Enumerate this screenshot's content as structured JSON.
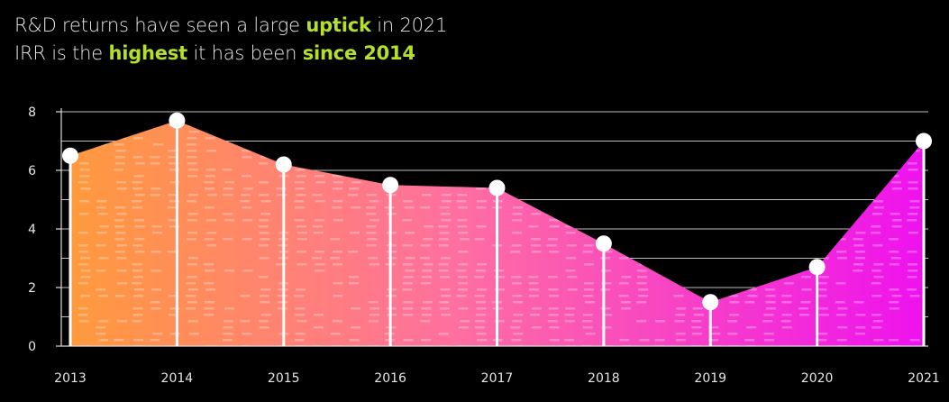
{
  "headline": {
    "line1": {
      "pre": "R&D returns have seen a large ",
      "em": "uptick",
      "post": " in 2021"
    },
    "line2": {
      "pre": "IRR is the ",
      "em1": "highest",
      "mid": " it has been ",
      "em2": "since 2014"
    }
  },
  "colors": {
    "accent": "#b4e02a",
    "gradient_start": "#ff9a3c",
    "gradient_mid": "#ff6fa0",
    "gradient_end": "#ee12ee"
  },
  "chart_data": {
    "type": "area",
    "title": "R&D returns have seen a large uptick in 2021",
    "subtitle": "IRR is the highest it has been since 2014",
    "xlabel": "",
    "ylabel": "",
    "categories": [
      "2013",
      "2014",
      "2015",
      "2016",
      "2017",
      "2018",
      "2019",
      "2020",
      "2021"
    ],
    "values": [
      6.5,
      7.7,
      6.2,
      5.5,
      5.4,
      3.5,
      1.5,
      2.7,
      7.0
    ],
    "ylim": [
      0,
      8
    ],
    "yticks": [
      "0",
      "2",
      "4",
      "6",
      "8"
    ],
    "grid": true,
    "markers": "lollipop"
  }
}
